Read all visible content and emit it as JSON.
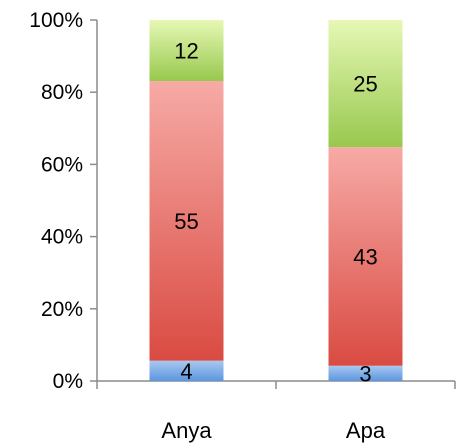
{
  "chart_data": {
    "type": "bar",
    "stacked": "percent",
    "categories": [
      "Anya",
      "Apa"
    ],
    "series": [
      {
        "values": [
          4,
          3
        ],
        "color": "#5b96e0"
      },
      {
        "values": [
          55,
          43
        ],
        "color": "#e05a52"
      },
      {
        "values": [
          12,
          25
        ],
        "color": "#a8d46a"
      }
    ],
    "ylim": [
      0,
      100
    ],
    "y_ticks": [
      "0%",
      "20%",
      "40%",
      "60%",
      "80%",
      "100%"
    ],
    "grid": false,
    "legend": "none"
  }
}
